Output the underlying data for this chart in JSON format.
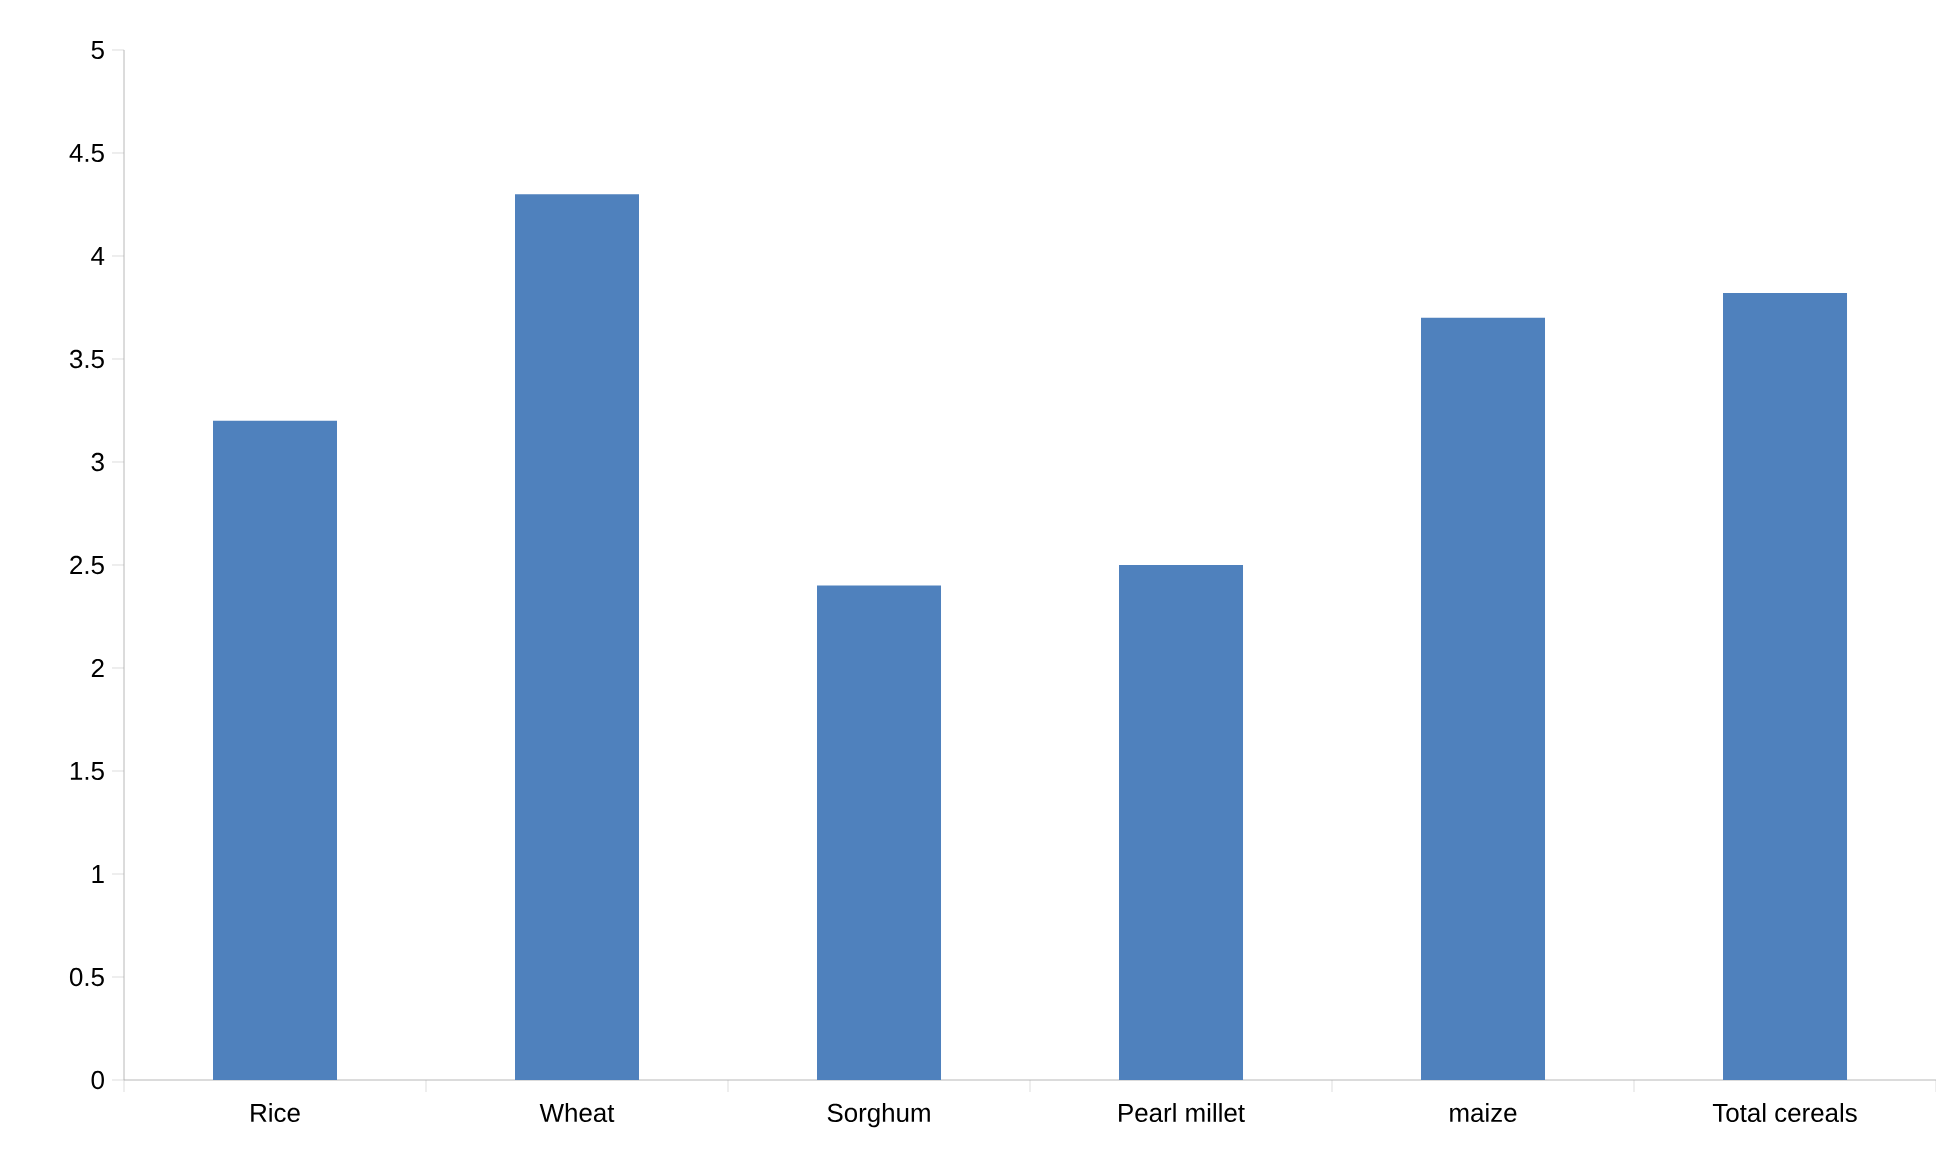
{
  "chart_data": {
    "type": "bar",
    "categories": [
      "Rice",
      "Wheat",
      "Sorghum",
      "Pearl millet",
      "maize",
      "Total cereals"
    ],
    "values": [
      3.2,
      4.3,
      2.4,
      2.5,
      3.7,
      3.82
    ],
    "color": "#4f81bd",
    "ylim": [
      0,
      5
    ],
    "yticks": [
      0,
      0.5,
      1,
      1.5,
      2,
      2.5,
      3,
      3.5,
      4,
      4.5,
      5
    ],
    "grid": false
  }
}
